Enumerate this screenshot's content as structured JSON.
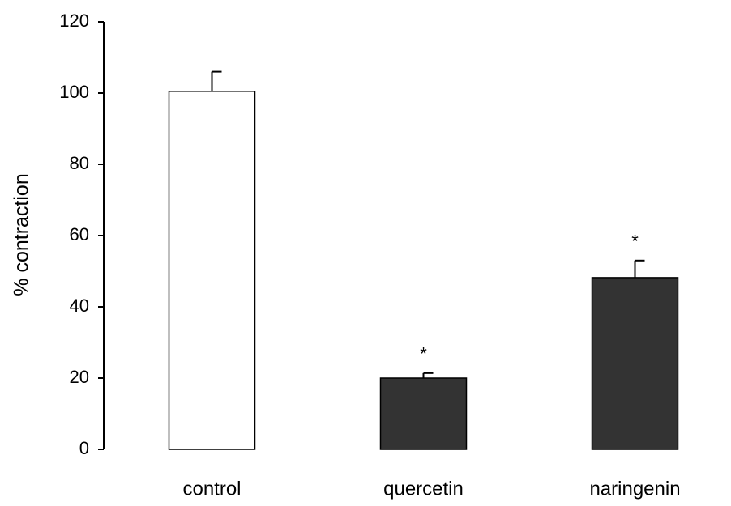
{
  "chart_data": {
    "type": "bar",
    "y_label": "% contraction",
    "categories": [
      "control",
      "quercetin",
      "naringenin"
    ],
    "values": [
      100.5,
      20,
      48.2
    ],
    "errors": [
      5.5,
      1.4,
      4.8
    ],
    "colors": [
      "#ffffff",
      "#333333",
      "#333333"
    ],
    "annotations": [
      {
        "category": "quercetin",
        "text": "*"
      },
      {
        "category": "naringenin",
        "text": "*"
      }
    ],
    "ylim": [
      0,
      120
    ],
    "yticks": [
      0,
      20,
      40,
      60,
      80,
      100,
      120
    ],
    "grid": false
  }
}
